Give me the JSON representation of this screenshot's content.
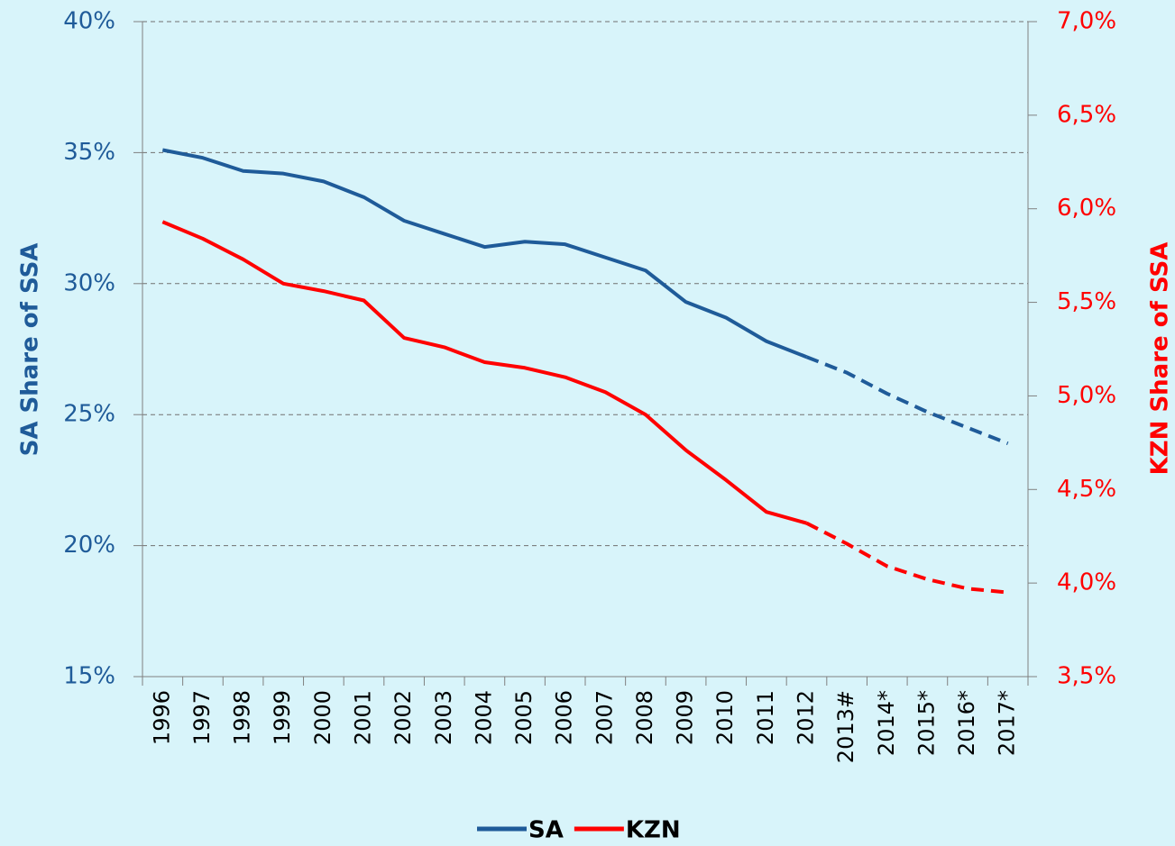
{
  "chart_data": {
    "type": "line",
    "categories": [
      "1996",
      "1997",
      "1998",
      "1999",
      "2000",
      "2001",
      "2002",
      "2003",
      "2004",
      "2005",
      "2006",
      "2007",
      "2008",
      "2009",
      "2010",
      "2011",
      "2012",
      "2013#",
      "2014*",
      "2015*",
      "2016*",
      "2017*"
    ],
    "series": [
      {
        "name": "SA",
        "color": "#1f5b99",
        "values": [
          35.1,
          34.8,
          34.3,
          34.2,
          33.9,
          33.3,
          32.4,
          31.9,
          31.4,
          31.6,
          31.5,
          31.0,
          30.5,
          29.3,
          28.7,
          27.8,
          27.2,
          26.6,
          25.8,
          25.1,
          24.5,
          23.9
        ]
      },
      {
        "name": "KZN",
        "color": "#ff0000",
        "axis": "y2",
        "values": [
          5.93,
          5.84,
          5.73,
          5.6,
          5.56,
          5.51,
          5.31,
          5.26,
          5.18,
          5.15,
          5.1,
          5.02,
          4.9,
          4.71,
          4.55,
          4.38,
          4.32,
          4.21,
          4.09,
          4.02,
          3.97,
          3.95
        ]
      }
    ],
    "dashed_from_index": 16,
    "ylabel": "SA Share of SSA",
    "y2label": "KZN Share of SSA",
    "ylim": [
      15,
      40
    ],
    "yticks": [
      {
        "value": 15,
        "label": "15%"
      },
      {
        "value": 20,
        "label": "20%"
      },
      {
        "value": 25,
        "label": "25%"
      },
      {
        "value": 30,
        "label": "30%"
      },
      {
        "value": 35,
        "label": "35%"
      },
      {
        "value": 40,
        "label": "40%"
      }
    ],
    "y2lim": [
      3.5,
      7.0
    ],
    "y2ticks": [
      {
        "value": 3.5,
        "label": "3,5%"
      },
      {
        "value": 4.0,
        "label": "4,0%"
      },
      {
        "value": 4.5,
        "label": "4,5%"
      },
      {
        "value": 5.0,
        "label": "5,0%"
      },
      {
        "value": 5.5,
        "label": "5,5%"
      },
      {
        "value": 6.0,
        "label": "6,0%"
      },
      {
        "value": 6.5,
        "label": "6,5%"
      },
      {
        "value": 7.0,
        "label": "7,0%"
      }
    ],
    "grid": true,
    "legend": "bottom"
  }
}
